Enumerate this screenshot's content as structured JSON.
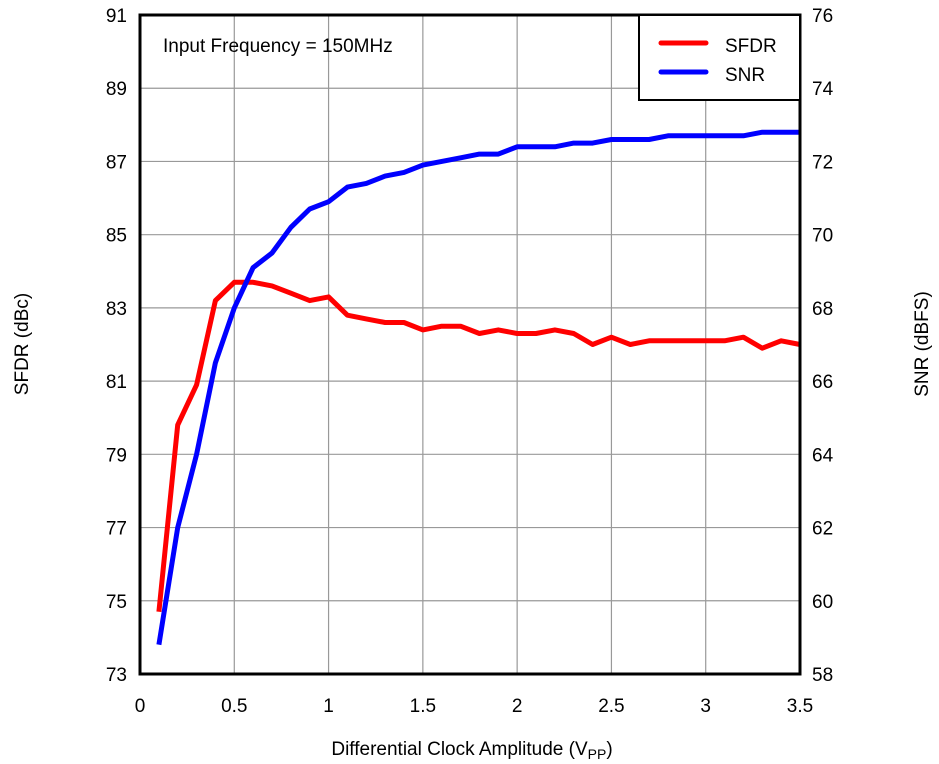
{
  "chart_data": {
    "type": "line",
    "title": "",
    "annotation": "Input Frequency = 150MHz",
    "xlabel": "Differential Clock Amplitude (V",
    "xlabel_subscript": "PP",
    "xlabel_suffix": ")",
    "ylabel_left": "SFDR (dBc)",
    "ylabel_right": "SNR (dBFS)",
    "xlim": [
      0,
      3.5
    ],
    "ylim_left": [
      73,
      91
    ],
    "ylim_right": [
      58,
      76
    ],
    "x_ticks": [
      "0",
      "0.5",
      "1",
      "1.5",
      "2",
      "2.5",
      "3",
      "3.5"
    ],
    "y_left_ticks": [
      "73",
      "75",
      "77",
      "79",
      "81",
      "83",
      "85",
      "87",
      "89",
      "91"
    ],
    "y_right_ticks": [
      "58",
      "60",
      "62",
      "64",
      "66",
      "68",
      "70",
      "72",
      "74",
      "76"
    ],
    "grid": true,
    "legend_position": "top-right",
    "x": [
      0.1,
      0.2,
      0.3,
      0.4,
      0.5,
      0.6,
      0.7,
      0.8,
      0.9,
      1.0,
      1.1,
      1.2,
      1.3,
      1.4,
      1.5,
      1.6,
      1.7,
      1.8,
      1.9,
      2.0,
      2.1,
      2.2,
      2.3,
      2.4,
      2.5,
      2.6,
      2.7,
      2.8,
      2.9,
      3.0,
      3.1,
      3.2,
      3.3,
      3.4,
      3.5
    ],
    "series": [
      {
        "name": "SFDR",
        "axis": "left",
        "color": "#ff0000",
        "values": [
          74.7,
          79.8,
          80.9,
          83.2,
          83.7,
          83.7,
          83.6,
          83.4,
          83.2,
          83.3,
          82.8,
          82.7,
          82.6,
          82.6,
          82.4,
          82.5,
          82.5,
          82.3,
          82.4,
          82.3,
          82.3,
          82.4,
          82.3,
          82.0,
          82.2,
          82.0,
          82.1,
          82.1,
          82.1,
          82.1,
          82.1,
          82.2,
          81.9,
          82.1,
          82.0
        ]
      },
      {
        "name": "SNR",
        "axis": "right",
        "color": "#0000ff",
        "values": [
          58.8,
          62.0,
          64.0,
          66.5,
          68.0,
          69.1,
          69.5,
          70.2,
          70.7,
          70.9,
          71.3,
          71.4,
          71.6,
          71.7,
          71.9,
          72.0,
          72.1,
          72.2,
          72.2,
          72.4,
          72.4,
          72.4,
          72.5,
          72.5,
          72.6,
          72.6,
          72.6,
          72.7,
          72.7,
          72.7,
          72.7,
          72.7,
          72.8,
          72.8,
          72.8
        ]
      }
    ]
  }
}
